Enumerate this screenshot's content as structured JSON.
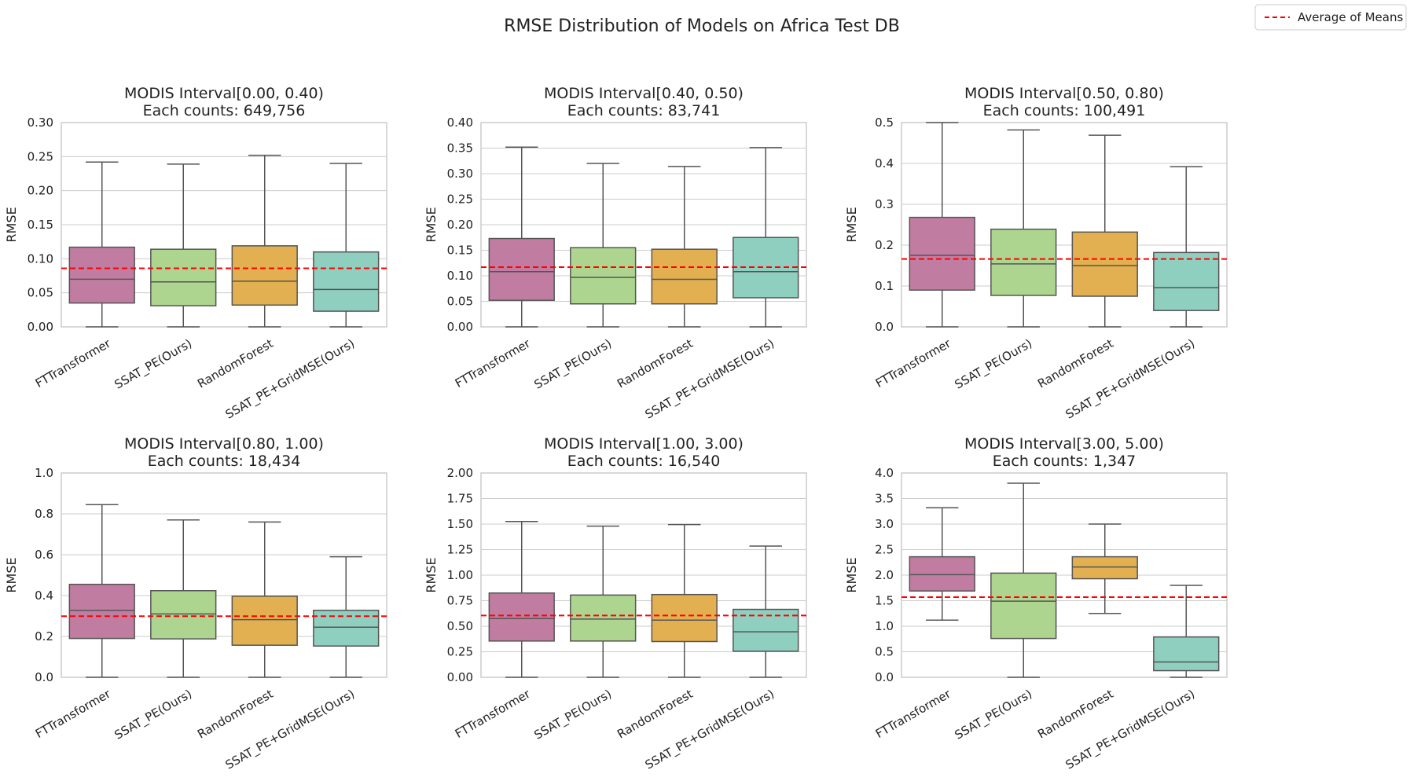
{
  "figure": {
    "title": "RMSE Distribution of Models on Africa Test DB",
    "legend": {
      "label": "Average of Means",
      "placement": "top-right",
      "color": "#ff0000",
      "style": "dashed"
    }
  },
  "chart_data": [
    {
      "type": "box",
      "title": "MODIS Interval[0.00, 0.40)",
      "subtitle": "Each counts: 649,756",
      "ylabel": "RMSE",
      "ylim": [
        0,
        0.3
      ],
      "yticks": [
        "0.00",
        "0.05",
        "0.10",
        "0.15",
        "0.20",
        "0.25",
        "0.30"
      ],
      "yticks_values": [
        0,
        0.05,
        0.1,
        0.15,
        0.2,
        0.25,
        0.3
      ],
      "categories": [
        "FTTransformer",
        "SSAT_PE(Ours)",
        "RandomForest",
        "SSAT_PE+GridMSE(Ours)"
      ],
      "boxes": [
        {
          "whisker_low": 0.0,
          "q1": 0.035,
          "median": 0.07,
          "q3": 0.117,
          "whisker_high": 0.242
        },
        {
          "whisker_low": 0.0,
          "q1": 0.031,
          "median": 0.066,
          "q3": 0.114,
          "whisker_high": 0.239
        },
        {
          "whisker_low": 0.0,
          "q1": 0.032,
          "median": 0.067,
          "q3": 0.119,
          "whisker_high": 0.252
        },
        {
          "whisker_low": 0.0,
          "q1": 0.023,
          "median": 0.055,
          "q3": 0.11,
          "whisker_high": 0.24
        }
      ],
      "average_of_means": 0.086
    },
    {
      "type": "box",
      "title": "MODIS Interval[0.40, 0.50)",
      "subtitle": "Each counts: 83,741",
      "ylabel": "RMSE",
      "ylim": [
        0,
        0.4
      ],
      "yticks": [
        "0.00",
        "0.05",
        "0.10",
        "0.15",
        "0.20",
        "0.25",
        "0.30",
        "0.35",
        "0.40"
      ],
      "yticks_values": [
        0,
        0.05,
        0.1,
        0.15,
        0.2,
        0.25,
        0.3,
        0.35,
        0.4
      ],
      "categories": [
        "FTTransformer",
        "SSAT_PE(Ours)",
        "RandomForest",
        "SSAT_PE+GridMSE(Ours)"
      ],
      "boxes": [
        {
          "whisker_low": 0.0,
          "q1": 0.052,
          "median": 0.108,
          "q3": 0.173,
          "whisker_high": 0.352
        },
        {
          "whisker_low": 0.0,
          "q1": 0.045,
          "median": 0.097,
          "q3": 0.155,
          "whisker_high": 0.32
        },
        {
          "whisker_low": 0.0,
          "q1": 0.045,
          "median": 0.093,
          "q3": 0.152,
          "whisker_high": 0.314
        },
        {
          "whisker_low": 0.0,
          "q1": 0.057,
          "median": 0.108,
          "q3": 0.175,
          "whisker_high": 0.351
        }
      ],
      "average_of_means": 0.117
    },
    {
      "type": "box",
      "title": "MODIS Interval[0.50, 0.80)",
      "subtitle": "Each counts: 100,491",
      "ylabel": "RMSE",
      "ylim": [
        0,
        0.5
      ],
      "yticks": [
        "0.0",
        "0.1",
        "0.2",
        "0.3",
        "0.4",
        "0.5"
      ],
      "yticks_values": [
        0,
        0.1,
        0.2,
        0.3,
        0.4,
        0.5
      ],
      "categories": [
        "FTTransformer",
        "SSAT_PE(Ours)",
        "RandomForest",
        "SSAT_PE+GridMSE(Ours)"
      ],
      "boxes": [
        {
          "whisker_low": 0.0,
          "q1": 0.09,
          "median": 0.175,
          "q3": 0.268,
          "whisker_high": 0.5
        },
        {
          "whisker_low": 0.0,
          "q1": 0.077,
          "median": 0.154,
          "q3": 0.239,
          "whisker_high": 0.482
        },
        {
          "whisker_low": 0.0,
          "q1": 0.075,
          "median": 0.15,
          "q3": 0.232,
          "whisker_high": 0.469
        },
        {
          "whisker_low": 0.0,
          "q1": 0.04,
          "median": 0.096,
          "q3": 0.182,
          "whisker_high": 0.392
        }
      ],
      "average_of_means": 0.166
    },
    {
      "type": "box",
      "title": "MODIS Interval[0.80, 1.00)",
      "subtitle": "Each counts: 18,434",
      "ylabel": "RMSE",
      "ylim": [
        0,
        1.0
      ],
      "yticks": [
        "0.0",
        "0.2",
        "0.4",
        "0.6",
        "0.8",
        "1.0"
      ],
      "yticks_values": [
        0,
        0.2,
        0.4,
        0.6,
        0.8,
        1.0
      ],
      "categories": [
        "FTTransformer",
        "SSAT_PE(Ours)",
        "RandomForest",
        "SSAT_PE+GridMSE(Ours)"
      ],
      "boxes": [
        {
          "whisker_low": 0.0,
          "q1": 0.19,
          "median": 0.328,
          "q3": 0.455,
          "whisker_high": 0.845
        },
        {
          "whisker_low": 0.0,
          "q1": 0.188,
          "median": 0.31,
          "q3": 0.424,
          "whisker_high": 0.77
        },
        {
          "whisker_low": 0.0,
          "q1": 0.157,
          "median": 0.282,
          "q3": 0.397,
          "whisker_high": 0.76
        },
        {
          "whisker_low": 0.0,
          "q1": 0.153,
          "median": 0.245,
          "q3": 0.328,
          "whisker_high": 0.59
        }
      ],
      "average_of_means": 0.299
    },
    {
      "type": "box",
      "title": "MODIS Interval[1.00, 3.00)",
      "subtitle": "Each counts: 16,540",
      "ylabel": "RMSE",
      "ylim": [
        0,
        2.0
      ],
      "yticks": [
        "0.00",
        "0.25",
        "0.50",
        "0.75",
        "1.00",
        "1.25",
        "1.50",
        "1.75",
        "2.00"
      ],
      "yticks_values": [
        0,
        0.25,
        0.5,
        0.75,
        1.0,
        1.25,
        1.5,
        1.75,
        2.0
      ],
      "categories": [
        "FTTransformer",
        "SSAT_PE(Ours)",
        "RandomForest",
        "SSAT_PE+GridMSE(Ours)"
      ],
      "boxes": [
        {
          "whisker_low": 0.0,
          "q1": 0.355,
          "median": 0.575,
          "q3": 0.825,
          "whisker_high": 1.525
        },
        {
          "whisker_low": 0.0,
          "q1": 0.355,
          "median": 0.57,
          "q3": 0.805,
          "whisker_high": 1.48
        },
        {
          "whisker_low": 0.0,
          "q1": 0.35,
          "median": 0.56,
          "q3": 0.81,
          "whisker_high": 1.495
        },
        {
          "whisker_low": 0.0,
          "q1": 0.255,
          "median": 0.445,
          "q3": 0.665,
          "whisker_high": 1.285
        }
      ],
      "average_of_means": 0.605
    },
    {
      "type": "box",
      "title": "MODIS Interval[3.00, 5.00)",
      "subtitle": "Each counts: 1,347",
      "ylabel": "RMSE",
      "ylim": [
        0,
        4.0
      ],
      "yticks": [
        "0.0",
        "0.5",
        "1.0",
        "1.5",
        "2.0",
        "2.5",
        "3.0",
        "3.5",
        "4.0"
      ],
      "yticks_values": [
        0,
        0.5,
        1.0,
        1.5,
        2.0,
        2.5,
        3.0,
        3.5,
        4.0
      ],
      "categories": [
        "FTTransformer",
        "SSAT_PE(Ours)",
        "RandomForest",
        "SSAT_PE+GridMSE(Ours)"
      ],
      "boxes": [
        {
          "whisker_low": 1.12,
          "q1": 1.69,
          "median": 2.01,
          "q3": 2.36,
          "whisker_high": 3.32
        },
        {
          "whisker_low": 0.0,
          "q1": 0.76,
          "median": 1.49,
          "q3": 2.04,
          "whisker_high": 3.8
        },
        {
          "whisker_low": 1.25,
          "q1": 1.93,
          "median": 2.16,
          "q3": 2.36,
          "whisker_high": 3.0
        },
        {
          "whisker_low": 0.0,
          "q1": 0.13,
          "median": 0.3,
          "q3": 0.79,
          "whisker_high": 1.8
        }
      ],
      "average_of_means": 1.57
    }
  ],
  "colors": {
    "boxes": [
      "#c17da1",
      "#aed58f",
      "#e2b050",
      "#8fcfbf"
    ],
    "grid": "#cccccc",
    "axes_edge": "#cccccc",
    "box_line": "#555555",
    "mean_line": "#ff0000"
  }
}
